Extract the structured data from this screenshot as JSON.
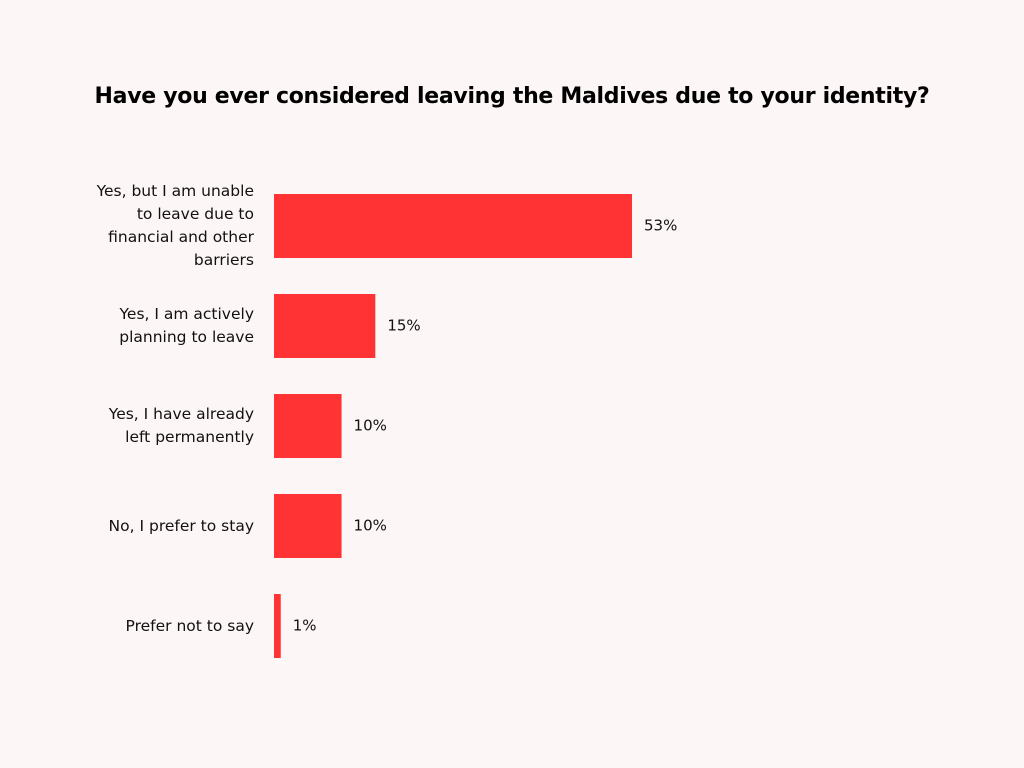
{
  "chart_data": {
    "type": "bar",
    "orientation": "horizontal",
    "title": "Have you ever considered leaving the Maldives due to your identity?",
    "categories": [
      "Yes, but I am unable to leave due to financial and other barriers",
      "Yes, I am actively planning to leave",
      "Yes, I have already left permanently",
      "No, I prefer to stay",
      "Prefer not to say"
    ],
    "values": [
      53,
      15,
      10,
      10,
      1
    ],
    "value_labels": [
      "53%",
      "15%",
      "10%",
      "10%",
      "1%"
    ],
    "color": "#ff3333"
  }
}
